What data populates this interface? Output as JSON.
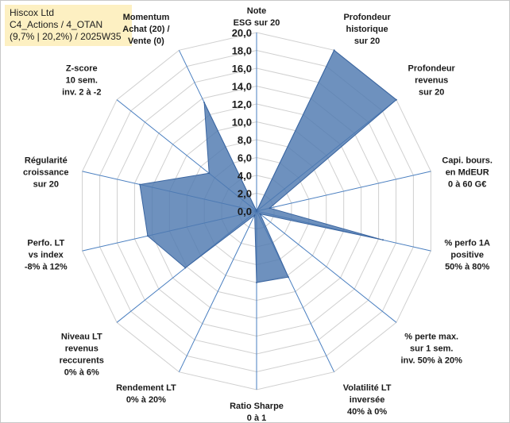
{
  "header": {
    "line1": "Hiscox Ltd",
    "line2": "C4_Actions / 4_OTAN",
    "line3": "(9,7% | 20,2%) / 2025W35"
  },
  "chart_data": {
    "type": "radar",
    "rmin": 0,
    "rmax": 20,
    "tick_step": 2,
    "ticks": [
      "0,0",
      "2,0",
      "4,0",
      "6,0",
      "8,0",
      "10,0",
      "12,0",
      "14,0",
      "16,0",
      "18,0",
      "20,0"
    ],
    "axes": [
      {
        "label": [
          "Note",
          "ESG sur 20"
        ],
        "value": 0
      },
      {
        "label": [
          "Profondeur",
          "historique",
          "sur 20"
        ],
        "value": 20
      },
      {
        "label": [
          "Profondeur",
          "revenus",
          "sur 20"
        ],
        "value": 20
      },
      {
        "label": [
          "Capi. bours.",
          "en MdEUR",
          "0 à 60 G€"
        ],
        "value": 1.5
      },
      {
        "label": [
          "% perfo 1A",
          "positive",
          "50% à 80%"
        ],
        "value": 14.5
      },
      {
        "label": [
          "% perte max.",
          "sur 1 sem.",
          "inv. 50% à 20%"
        ],
        "value": 0.5
      },
      {
        "label": [
          "Volatilité LT",
          "inversée",
          "40% à 0%"
        ],
        "value": 8.2
      },
      {
        "label": [
          "Ratio Sharpe",
          "0 à 1"
        ],
        "value": 8.0
      },
      {
        "label": [
          "Rendement LT",
          "0% à 20%"
        ],
        "value": 0.5
      },
      {
        "label": [
          "Niveau LT",
          "revenus",
          "reccurents",
          "0% à 6%"
        ],
        "value": 10.2
      },
      {
        "label": [
          "Perfo. LT",
          "vs index",
          "-8% à 12%"
        ],
        "value": 12.5
      },
      {
        "label": [
          "Régularité",
          "croissance",
          "sur 20"
        ],
        "value": 13.4
      },
      {
        "label": [
          "Z-score",
          "10 sem.",
          "inv. 2 à -2"
        ],
        "value": 6.8
      },
      {
        "label": [
          "Momentum",
          "Achat (20) /",
          "Vente (0)"
        ],
        "value": 13.5
      }
    ],
    "grid": true,
    "legend": "none",
    "colors": {
      "fill": "#4e79b0",
      "stroke": "#3a65a0",
      "grid": "#d0d0d0",
      "axis": "#4a7fc0"
    }
  }
}
